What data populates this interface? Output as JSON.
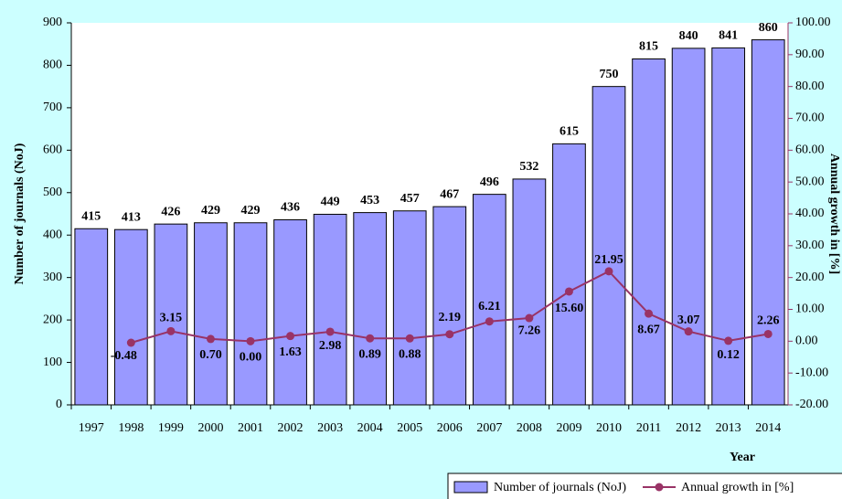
{
  "chart_data": {
    "type": "bar",
    "categories": [
      "1997",
      "1998",
      "1999",
      "2000",
      "2001",
      "2002",
      "2003",
      "2004",
      "2005",
      "2006",
      "2007",
      "2008",
      "2009",
      "2010",
      "2011",
      "2012",
      "2013",
      "2014"
    ],
    "series": [
      {
        "name": "Number of journals (NoJ)",
        "type": "bar",
        "color": "#9999ff",
        "values": [
          415,
          413,
          426,
          429,
          429,
          436,
          449,
          453,
          457,
          467,
          496,
          532,
          615,
          750,
          815,
          840,
          841,
          860
        ]
      },
      {
        "name": "Annual growth in [%]",
        "type": "line",
        "axis": "y2",
        "color": "#993366",
        "values": [
          null,
          -0.48,
          3.15,
          0.7,
          0,
          1.63,
          2.98,
          0.89,
          0.88,
          2.19,
          6.21,
          7.26,
          15.6,
          21.95,
          8.67,
          3.07,
          0.12,
          2.26
        ],
        "value_labels": [
          null,
          "-0.48",
          "3.15",
          "0.70",
          "0.00",
          "1.63",
          "2.98",
          "0.89",
          "0.88",
          "2.19",
          "6.21",
          "7.26",
          "15.60",
          "21.95",
          "8.67",
          "3.07",
          "0.12",
          "2.26"
        ]
      }
    ],
    "y_label": "Number of journals (NoJ)",
    "y2_label": "Annual growth in [%]",
    "x_label": "Year",
    "ylim": [
      0,
      900
    ],
    "yticks": [
      0,
      100,
      200,
      300,
      400,
      500,
      600,
      700,
      800,
      900
    ],
    "y2lim": [
      -20,
      100
    ],
    "y2ticks": [
      {
        "value": -20,
        "label": "-20.00"
      },
      {
        "value": -10,
        "label": "-10.00"
      },
      {
        "value": 0,
        "label": "0.00"
      },
      {
        "value": 10,
        "label": "10.00"
      },
      {
        "value": 20,
        "label": "20.00"
      },
      {
        "value": 30,
        "label": "30.00"
      },
      {
        "value": 40,
        "label": "40.00"
      },
      {
        "value": 50,
        "label": "50.00"
      },
      {
        "value": 60,
        "label": "60.00"
      },
      {
        "value": 70,
        "label": "70.00"
      },
      {
        "value": 80,
        "label": "80.00"
      },
      {
        "value": 90,
        "label": "90.00"
      },
      {
        "value": 100,
        "label": "100.00"
      }
    ]
  }
}
